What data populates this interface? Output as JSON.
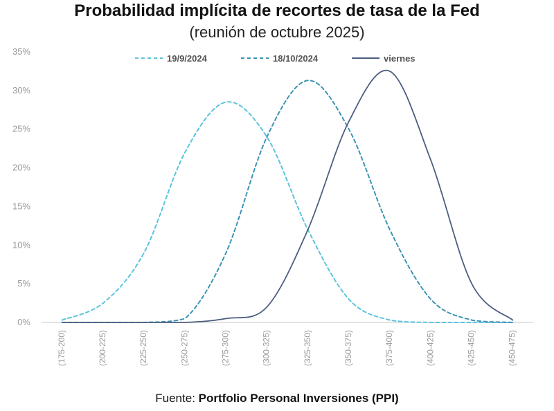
{
  "title": "Probabilidad implícita de recortes de tasa de la Fed",
  "subtitle": "(reunión de octubre 2025)",
  "source": {
    "prefix": "Fuente:",
    "name": "Portfolio Personal Inversiones (PPI)"
  },
  "chart_data": {
    "type": "line",
    "categories": [
      "(175-200)",
      "(200-225)",
      "(225-250)",
      "(250-275)",
      "(275-300)",
      "(300-325)",
      "(325-350)",
      "(350-375)",
      "(375-400)",
      "(400-425)",
      "(425-450)",
      "(450-475)"
    ],
    "y_tick_labels": [
      "0%",
      "5%",
      "10%",
      "15%",
      "20%",
      "25%",
      "30%",
      "35%"
    ],
    "ylim": [
      0,
      35
    ],
    "legend_position": "top",
    "grid": false,
    "series": [
      {
        "name": "19/9/2024",
        "color": "#5bc4dc",
        "dash": true,
        "values": [
          0.3,
          2.5,
          9,
          22,
          28.5,
          24,
          12,
          3,
          0.3,
          0,
          0,
          0
        ]
      },
      {
        "name": "18/10/2024",
        "color": "#3d93b3",
        "dash": true,
        "values": [
          0,
          0,
          0,
          0.5,
          9,
          24,
          31.3,
          25,
          12,
          3,
          0.3,
          0
        ]
      },
      {
        "name": "viernes",
        "color": "#4c5d80",
        "dash": false,
        "values": [
          0,
          0,
          0,
          0,
          0.5,
          2,
          12,
          26,
          32.5,
          21,
          5,
          0.3
        ]
      }
    ]
  }
}
